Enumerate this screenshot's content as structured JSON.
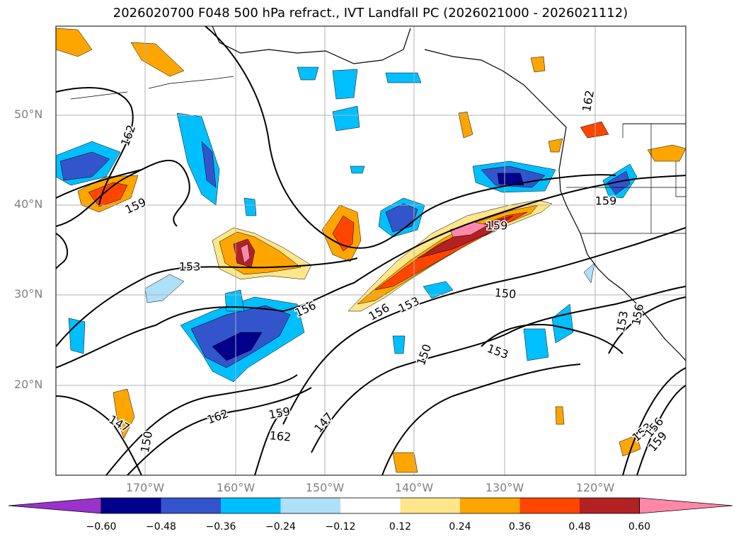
{
  "title": "2026020700 F048 500 hPa refract., IVT Landfall PC (2026021000 - 2026021112)",
  "lat_labels": [
    "50°N",
    "40°N",
    "30°N",
    "20°N"
  ],
  "lon_labels": [
    "170°W",
    "160°W",
    "150°W",
    "140°W",
    "130°W",
    "120°W"
  ],
  "contour_labels": [
    "162",
    "159",
    "153",
    "156",
    "156",
    "153",
    "159",
    "150",
    "153",
    "150",
    "162",
    "159",
    "162",
    "147",
    "150",
    "147",
    "153",
    "156",
    "153",
    "156",
    "159",
    "159",
    "162"
  ],
  "colorbar": {
    "colors": [
      "#9933cc",
      "#00008b",
      "#3355cc",
      "#00bfff",
      "#aee0f8",
      "#ffffff",
      "#ffe68a",
      "#ffa500",
      "#ff4500",
      "#b22222",
      "#ff88aa"
    ],
    "tick_labels": [
      "−0.60",
      "−0.48",
      "−0.36",
      "−0.24",
      "−0.12",
      "0.12",
      "0.24",
      "0.36",
      "0.48",
      "0.60"
    ]
  }
}
